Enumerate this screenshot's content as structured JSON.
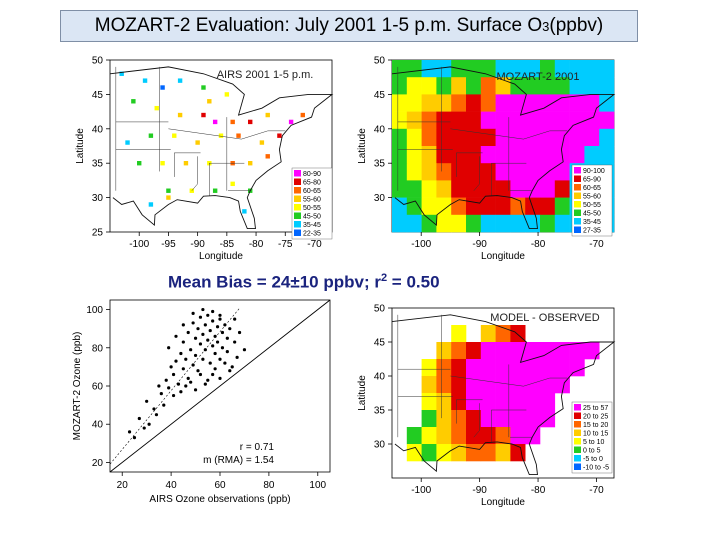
{
  "title": {
    "main": "MOZART-2 Evaluation: July 2001 1-5 p.m. Surface O",
    "sub": "3",
    "tail": " (ppbv)"
  },
  "mean_bias": {
    "text": "Mean Bias = 24±10 ppbv; r",
    "sup": "2",
    "tail": " = 0.50"
  },
  "colors": {
    "title_bg": "#dbe6f4",
    "bias_text": "#1a237e"
  },
  "chart_data": [
    {
      "type": "heatmap",
      "panel": "airs",
      "title": "AIRS 2001 1-5 p.m.",
      "xlabel": "Longitude",
      "ylabel": "Latitude",
      "xlim": [
        -105,
        -67
      ],
      "ylim": [
        25,
        50
      ],
      "xticks": [
        -100,
        -95,
        -90,
        -85,
        -80,
        -75,
        -70
      ],
      "yticks": [
        25,
        30,
        35,
        40,
        45,
        50
      ],
      "legend": [
        "80-90",
        "65-80",
        "60-65",
        "55-60",
        "50-55",
        "45-50",
        "35-45",
        "22-35"
      ],
      "legend_colors": [
        "#ff00ff",
        "#e00000",
        "#ff6600",
        "#ffcc00",
        "#ffff00",
        "#22cc22",
        "#00ccff",
        "#0066ff"
      ],
      "points": [
        {
          "lon": -103,
          "lat": 48,
          "c": 6
        },
        {
          "lon": -99,
          "lat": 47,
          "c": 6
        },
        {
          "lon": -96,
          "lat": 46,
          "c": 7
        },
        {
          "lon": -93,
          "lat": 47,
          "c": 6
        },
        {
          "lon": -89,
          "lat": 46,
          "c": 5
        },
        {
          "lon": -85,
          "lat": 45,
          "c": 4
        },
        {
          "lon": -101,
          "lat": 44,
          "c": 5
        },
        {
          "lon": -97,
          "lat": 43,
          "c": 4
        },
        {
          "lon": -93,
          "lat": 42,
          "c": 3
        },
        {
          "lon": -89,
          "lat": 42,
          "c": 1
        },
        {
          "lon": -87,
          "lat": 41,
          "c": 0
        },
        {
          "lon": -84,
          "lat": 41,
          "c": 2
        },
        {
          "lon": -81,
          "lat": 41,
          "c": 1
        },
        {
          "lon": -78,
          "lat": 42,
          "c": 3
        },
        {
          "lon": -74,
          "lat": 41,
          "c": 0
        },
        {
          "lon": -72,
          "lat": 42,
          "c": 2
        },
        {
          "lon": -76,
          "lat": 39,
          "c": 1
        },
        {
          "lon": -79,
          "lat": 38,
          "c": 3
        },
        {
          "lon": -83,
          "lat": 39,
          "c": 2
        },
        {
          "lon": -86,
          "lat": 39,
          "c": 4
        },
        {
          "lon": -90,
          "lat": 38,
          "c": 3
        },
        {
          "lon": -94,
          "lat": 39,
          "c": 4
        },
        {
          "lon": -98,
          "lat": 39,
          "c": 5
        },
        {
          "lon": -102,
          "lat": 38,
          "c": 6
        },
        {
          "lon": -100,
          "lat": 35,
          "c": 5
        },
        {
          "lon": -96,
          "lat": 35,
          "c": 4
        },
        {
          "lon": -92,
          "lat": 35,
          "c": 3
        },
        {
          "lon": -88,
          "lat": 35,
          "c": 4
        },
        {
          "lon": -84,
          "lat": 35,
          "c": 2
        },
        {
          "lon": -81,
          "lat": 35,
          "c": 3
        },
        {
          "lon": -78,
          "lat": 36,
          "c": 2
        },
        {
          "lon": -95,
          "lat": 31,
          "c": 5
        },
        {
          "lon": -91,
          "lat": 31,
          "c": 4
        },
        {
          "lon": -87,
          "lat": 31,
          "c": 5
        },
        {
          "lon": -84,
          "lat": 32,
          "c": 4
        },
        {
          "lon": -81,
          "lat": 31,
          "c": 5
        },
        {
          "lon": -98,
          "lat": 29,
          "c": 6
        },
        {
          "lon": -82,
          "lat": 28,
          "c": 6
        },
        {
          "lon": -95,
          "lat": 30,
          "c": 3
        },
        {
          "lon": -88,
          "lat": 44,
          "c": 3
        }
      ]
    },
    {
      "type": "heatmap",
      "panel": "mozart",
      "title": "MOZART-2 2001",
      "xlabel": "Longitude",
      "ylabel": "Latitude",
      "xlim": [
        -105,
        -67
      ],
      "ylim": [
        25,
        50
      ],
      "xticks": [
        -100,
        -90,
        -80,
        -70
      ],
      "yticks": [
        30,
        35,
        40,
        45,
        50
      ],
      "legend": [
        "90-100",
        "65-90",
        "60-65",
        "55-60",
        "50-55",
        "45-50",
        "35-45",
        "27-35"
      ],
      "legend_colors": [
        "#ff00ff",
        "#e00000",
        "#ff6600",
        "#ffcc00",
        "#ffff00",
        "#22cc22",
        "#00ccff",
        "#0066ff"
      ],
      "rows": [
        [
          5,
          5,
          6,
          6,
          5,
          5,
          5,
          6,
          6,
          6,
          5,
          6,
          6,
          6,
          6
        ],
        [
          5,
          4,
          4,
          5,
          3,
          5,
          2,
          3,
          5,
          5,
          5,
          5,
          6,
          6,
          6
        ],
        [
          4,
          4,
          3,
          3,
          2,
          1,
          2,
          0,
          0,
          0,
          0,
          0,
          0,
          0,
          6
        ],
        [
          4,
          3,
          2,
          1,
          1,
          1,
          0,
          0,
          0,
          0,
          0,
          0,
          0,
          0,
          0
        ],
        [
          5,
          4,
          2,
          1,
          1,
          1,
          1,
          0,
          0,
          0,
          0,
          0,
          0,
          0,
          6
        ],
        [
          5,
          4,
          3,
          1,
          1,
          1,
          0,
          0,
          0,
          0,
          0,
          0,
          0,
          6,
          6
        ],
        [
          5,
          4,
          3,
          2,
          1,
          1,
          1,
          0,
          0,
          0,
          0,
          0,
          6,
          6,
          6
        ],
        [
          5,
          5,
          4,
          3,
          1,
          1,
          1,
          1,
          0,
          0,
          0,
          1,
          6,
          6,
          6
        ],
        [
          6,
          5,
          4,
          4,
          2,
          1,
          1,
          1,
          2,
          1,
          1,
          5,
          6,
          6,
          6
        ],
        [
          6,
          6,
          5,
          4,
          4,
          5,
          6,
          6,
          6,
          6,
          5,
          6,
          6,
          6,
          6
        ]
      ]
    },
    {
      "type": "scatter",
      "panel": "scatter",
      "xlabel": "AIRS Ozone observations (ppb)",
      "ylabel": "MOZART-2 Ozone (ppb)",
      "xlim": [
        15,
        105
      ],
      "ylim": [
        15,
        105
      ],
      "xticks": [
        20,
        40,
        60,
        80,
        100
      ],
      "yticks": [
        20,
        40,
        60,
        80,
        100
      ],
      "stats": {
        "r": "r = 0.71",
        "m": "m (RMA) = 1.54"
      },
      "points": [
        [
          23,
          36
        ],
        [
          27,
          43
        ],
        [
          30,
          52
        ],
        [
          33,
          48
        ],
        [
          35,
          60
        ],
        [
          36,
          56
        ],
        [
          38,
          63
        ],
        [
          39,
          59
        ],
        [
          40,
          70
        ],
        [
          41,
          66
        ],
        [
          42,
          73
        ],
        [
          43,
          61
        ],
        [
          44,
          77
        ],
        [
          45,
          69
        ],
        [
          45,
          83
        ],
        [
          46,
          74
        ],
        [
          47,
          64
        ],
        [
          47,
          88
        ],
        [
          48,
          79
        ],
        [
          49,
          71
        ],
        [
          49,
          93
        ],
        [
          50,
          85
        ],
        [
          50,
          76
        ],
        [
          51,
          68
        ],
        [
          51,
          90
        ],
        [
          52,
          82
        ],
        [
          52,
          96
        ],
        [
          53,
          74
        ],
        [
          53,
          87
        ],
        [
          54,
          92
        ],
        [
          54,
          79
        ],
        [
          55,
          84
        ],
        [
          55,
          97
        ],
        [
          56,
          72
        ],
        [
          56,
          89
        ],
        [
          57,
          81
        ],
        [
          57,
          94
        ],
        [
          58,
          86
        ],
        [
          58,
          77
        ],
        [
          59,
          91
        ],
        [
          59,
          83
        ],
        [
          60,
          95
        ],
        [
          60,
          74
        ],
        [
          61,
          88
        ],
        [
          61,
          80
        ],
        [
          62,
          92
        ],
        [
          63,
          85
        ],
        [
          63,
          78
        ],
        [
          64,
          90
        ],
        [
          65,
          70
        ],
        [
          66,
          83
        ],
        [
          67,
          75
        ],
        [
          44,
          57
        ],
        [
          48,
          62
        ],
        [
          52,
          66
        ],
        [
          55,
          63
        ],
        [
          58,
          69
        ],
        [
          62,
          72
        ],
        [
          37,
          50
        ],
        [
          41,
          55
        ],
        [
          34,
          45
        ],
        [
          31,
          40
        ],
        [
          29,
          38
        ],
        [
          25,
          33
        ],
        [
          46,
          60
        ],
        [
          50,
          58
        ],
        [
          54,
          61
        ],
        [
          57,
          66
        ],
        [
          60,
          64
        ],
        [
          64,
          68
        ],
        [
          53,
          100
        ],
        [
          57,
          99
        ],
        [
          60,
          97
        ],
        [
          49,
          98
        ],
        [
          45,
          92
        ],
        [
          42,
          86
        ],
        [
          39,
          80
        ],
        [
          66,
          95
        ],
        [
          68,
          88
        ],
        [
          70,
          79
        ]
      ]
    },
    {
      "type": "heatmap",
      "panel": "bias",
      "title": "MODEL - OBSERVED",
      "xlabel": "Longitude",
      "ylabel": "Latitude",
      "xlim": [
        -105,
        -67
      ],
      "ylim": [
        25,
        50
      ],
      "xticks": [
        -100,
        -90,
        -80,
        -70
      ],
      "yticks": [
        30,
        35,
        40,
        45,
        50
      ],
      "legend": [
        "25 to 57",
        "20 to 25",
        "15 to 20",
        "10 to 15",
        "5 to 10",
        "0 to 5",
        "-5 to 0",
        "-10 to -5"
      ],
      "legend_colors": [
        "#ff00ff",
        "#e00000",
        "#ff6600",
        "#ffcc00",
        "#ffff00",
        "#22cc22",
        "#00ccff",
        "#0066ff"
      ],
      "rows": [
        [
          8,
          8,
          8,
          8,
          8,
          8,
          8,
          8,
          8,
          8,
          8,
          8,
          8,
          8,
          8
        ],
        [
          8,
          8,
          8,
          8,
          4,
          8,
          3,
          2,
          1,
          8,
          8,
          8,
          8,
          8,
          8
        ],
        [
          8,
          8,
          8,
          3,
          2,
          1,
          0,
          0,
          0,
          0,
          0,
          0,
          0,
          0,
          8
        ],
        [
          8,
          8,
          4,
          2,
          1,
          0,
          0,
          0,
          0,
          0,
          0,
          0,
          0,
          8,
          8
        ],
        [
          8,
          8,
          3,
          2,
          1,
          0,
          0,
          0,
          0,
          0,
          0,
          0,
          8,
          8,
          8
        ],
        [
          8,
          8,
          4,
          3,
          1,
          0,
          0,
          0,
          0,
          0,
          0,
          8,
          8,
          8,
          8
        ],
        [
          8,
          8,
          5,
          3,
          2,
          1,
          0,
          0,
          0,
          0,
          0,
          8,
          8,
          8,
          8
        ],
        [
          8,
          5,
          4,
          3,
          2,
          1,
          1,
          2,
          0,
          0,
          8,
          8,
          8,
          8,
          8
        ],
        [
          8,
          4,
          5,
          4,
          3,
          2,
          2,
          3,
          1,
          8,
          8,
          8,
          8,
          8,
          8
        ],
        [
          8,
          8,
          8,
          8,
          8,
          8,
          8,
          8,
          8,
          8,
          8,
          8,
          8,
          8,
          8
        ]
      ]
    }
  ]
}
